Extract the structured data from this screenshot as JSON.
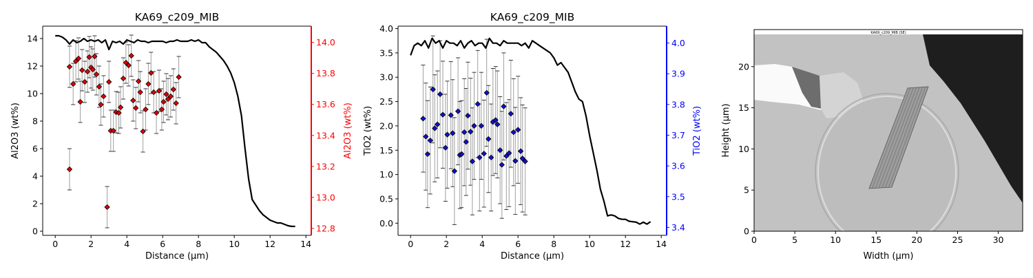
{
  "chart_data": [
    {
      "type": "line+scatter",
      "title": "KA69_c209_MIB",
      "xlabel": "Distance (µm)",
      "ylabel": "Al2O3 (wt%)",
      "ylabel_right": "Al2O3 (wt%)",
      "xlim": [
        -0.7,
        14.3
      ],
      "ylim": [
        -0.3,
        14.9
      ],
      "ylim_right": [
        12.755,
        14.105
      ],
      "xticks": [
        0,
        2,
        4,
        6,
        8,
        10,
        12,
        14
      ],
      "yticks": [
        0,
        2,
        4,
        6,
        8,
        10,
        12,
        14
      ],
      "yticks_right": [
        12.8,
        13.0,
        13.2,
        13.4,
        13.6,
        13.8,
        14.0
      ],
      "right_axis_color": "#ff0000",
      "marker_color": "#dd0000",
      "line": {
        "x": [
          0,
          0.2,
          0.4,
          0.6,
          0.8,
          1.0,
          1.2,
          1.4,
          1.6,
          1.8,
          2.0,
          2.2,
          2.4,
          2.6,
          2.8,
          3.0,
          3.2,
          3.4,
          3.6,
          3.8,
          4.0,
          4.2,
          4.4,
          4.6,
          4.8,
          5.0,
          5.2,
          5.4,
          5.6,
          5.8,
          6.0,
          6.2,
          6.4,
          6.6,
          6.8,
          7.0,
          7.2,
          7.4,
          7.6,
          7.8,
          8.0,
          8.2,
          8.4,
          8.6,
          8.8,
          9.0,
          9.2,
          9.4,
          9.6,
          9.8,
          10.0,
          10.2,
          10.4,
          10.6,
          10.8,
          11.0,
          11.2,
          11.4,
          11.6,
          11.8,
          12.0,
          12.2,
          12.4,
          12.6,
          12.8,
          13.0,
          13.2,
          13.4
        ],
        "y": [
          14.2,
          14.2,
          14.1,
          13.9,
          13.6,
          13.9,
          13.7,
          13.8,
          14.0,
          13.8,
          13.9,
          13.8,
          13.9,
          13.7,
          13.9,
          13.2,
          13.8,
          13.7,
          13.8,
          13.6,
          13.9,
          13.8,
          13.7,
          13.9,
          13.8,
          13.8,
          13.7,
          13.8,
          13.8,
          13.8,
          13.8,
          13.7,
          13.8,
          13.8,
          13.9,
          13.8,
          13.8,
          13.8,
          13.9,
          13.8,
          13.9,
          13.7,
          13.7,
          13.4,
          13.2,
          13.0,
          12.7,
          12.4,
          12.0,
          11.5,
          10.8,
          9.8,
          8.4,
          6.0,
          3.8,
          2.3,
          1.9,
          1.5,
          1.2,
          1.0,
          0.8,
          0.7,
          0.6,
          0.6,
          0.5,
          0.4,
          0.35,
          0.35
        ]
      },
      "points": [
        {
          "x": 0.8,
          "y": 11.95,
          "err": 1.5
        },
        {
          "x": 0.8,
          "y": 4.5,
          "err": 1.5
        },
        {
          "x": 1.0,
          "y": 10.7,
          "err": 1.5
        },
        {
          "x": 1.15,
          "y": 12.35,
          "err": 1.5
        },
        {
          "x": 1.3,
          "y": 12.55,
          "err": 1.5
        },
        {
          "x": 1.4,
          "y": 9.4,
          "err": 1.5
        },
        {
          "x": 1.5,
          "y": 11.7,
          "err": 1.5
        },
        {
          "x": 1.65,
          "y": 10.85,
          "err": 1.5
        },
        {
          "x": 1.8,
          "y": 11.6,
          "err": 1.5
        },
        {
          "x": 1.9,
          "y": 12.65,
          "err": 1.5
        },
        {
          "x": 2.0,
          "y": 11.9,
          "err": 1.5
        },
        {
          "x": 2.1,
          "y": 11.75,
          "err": 1.5
        },
        {
          "x": 2.2,
          "y": 12.7,
          "err": 1.5
        },
        {
          "x": 2.3,
          "y": 11.4,
          "err": 1.5
        },
        {
          "x": 2.45,
          "y": 10.5,
          "err": 1.5
        },
        {
          "x": 2.55,
          "y": 9.2,
          "err": 1.5
        },
        {
          "x": 2.7,
          "y": 9.8,
          "err": 1.5
        },
        {
          "x": 2.9,
          "y": 1.75,
          "err": 1.5
        },
        {
          "x": 3.0,
          "y": 10.85,
          "err": 1.5
        },
        {
          "x": 3.1,
          "y": 7.3,
          "err": 1.5
        },
        {
          "x": 3.25,
          "y": 7.3,
          "err": 1.5
        },
        {
          "x": 3.4,
          "y": 8.65,
          "err": 1.5
        },
        {
          "x": 3.55,
          "y": 8.6,
          "err": 1.5
        },
        {
          "x": 3.65,
          "y": 9.0,
          "err": 1.5
        },
        {
          "x": 3.8,
          "y": 11.1,
          "err": 1.5
        },
        {
          "x": 3.95,
          "y": 12.25,
          "err": 1.5
        },
        {
          "x": 4.1,
          "y": 12.05,
          "err": 1.5
        },
        {
          "x": 4.25,
          "y": 12.75,
          "err": 1.5
        },
        {
          "x": 4.35,
          "y": 9.5,
          "err": 1.5
        },
        {
          "x": 4.5,
          "y": 8.95,
          "err": 1.5
        },
        {
          "x": 4.65,
          "y": 10.9,
          "err": 1.5
        },
        {
          "x": 4.75,
          "y": 10.1,
          "err": 1.5
        },
        {
          "x": 4.9,
          "y": 7.25,
          "err": 1.5
        },
        {
          "x": 5.05,
          "y": 8.85,
          "err": 1.5
        },
        {
          "x": 5.2,
          "y": 10.7,
          "err": 1.5
        },
        {
          "x": 5.35,
          "y": 11.5,
          "err": 1.5
        },
        {
          "x": 5.5,
          "y": 10.1,
          "err": 1.5
        },
        {
          "x": 5.65,
          "y": 8.6,
          "err": 1.5
        },
        {
          "x": 5.8,
          "y": 10.2,
          "err": 1.5
        },
        {
          "x": 5.95,
          "y": 8.85,
          "err": 1.5
        },
        {
          "x": 6.05,
          "y": 9.4,
          "err": 1.5
        },
        {
          "x": 6.2,
          "y": 9.95,
          "err": 1.5
        },
        {
          "x": 6.3,
          "y": 9.6,
          "err": 1.5
        },
        {
          "x": 6.45,
          "y": 9.8,
          "err": 1.5
        },
        {
          "x": 6.6,
          "y": 10.3,
          "err": 1.5
        },
        {
          "x": 6.75,
          "y": 9.3,
          "err": 1.5
        },
        {
          "x": 6.9,
          "y": 11.2,
          "err": 1.5
        }
      ]
    },
    {
      "type": "line+scatter",
      "title": "KA69_c209_MIB",
      "xlabel": "Distance (µm)",
      "ylabel": "TiO2 (wt%)",
      "ylabel_right": "TiO2 (wt%)",
      "xlim": [
        -0.7,
        14.3
      ],
      "ylim": [
        -0.25,
        4.05
      ],
      "ylim_right": [
        3.374,
        4.055
      ],
      "xticks": [
        0,
        2,
        4,
        6,
        8,
        10,
        12,
        14
      ],
      "yticks": [
        0.0,
        0.5,
        1.0,
        1.5,
        2.0,
        2.5,
        3.0,
        3.5,
        4.0
      ],
      "yticks_right": [
        3.4,
        3.5,
        3.6,
        3.7,
        3.8,
        3.9,
        4.0
      ],
      "right_axis_color": "#0000ff",
      "marker_color": "#1111cc",
      "line": {
        "x": [
          0,
          0.2,
          0.4,
          0.6,
          0.8,
          1.0,
          1.2,
          1.4,
          1.6,
          1.8,
          2.0,
          2.2,
          2.4,
          2.6,
          2.8,
          3.0,
          3.2,
          3.4,
          3.6,
          3.8,
          4.0,
          4.2,
          4.4,
          4.6,
          4.8,
          5.0,
          5.2,
          5.4,
          5.6,
          5.8,
          6.0,
          6.2,
          6.4,
          6.6,
          6.8,
          7.0,
          7.2,
          7.4,
          7.6,
          7.8,
          8.0,
          8.2,
          8.4,
          8.6,
          8.8,
          9.0,
          9.2,
          9.4,
          9.6,
          9.8,
          10.0,
          10.2,
          10.4,
          10.6,
          10.8,
          11.0,
          11.2,
          11.4,
          11.6,
          11.8,
          12.0,
          12.2,
          12.4,
          12.6,
          12.8,
          13.0,
          13.2,
          13.4
        ],
        "y": [
          3.45,
          3.65,
          3.7,
          3.65,
          3.75,
          3.6,
          3.8,
          3.7,
          3.75,
          3.6,
          3.75,
          3.7,
          3.7,
          3.65,
          3.75,
          3.6,
          3.7,
          3.75,
          3.65,
          3.7,
          3.7,
          3.6,
          3.8,
          3.7,
          3.7,
          3.65,
          3.75,
          3.7,
          3.7,
          3.7,
          3.7,
          3.65,
          3.7,
          3.6,
          3.75,
          3.7,
          3.65,
          3.6,
          3.55,
          3.5,
          3.4,
          3.25,
          3.3,
          3.2,
          3.1,
          2.9,
          2.7,
          2.55,
          2.5,
          2.2,
          1.8,
          1.45,
          1.1,
          0.7,
          0.45,
          0.15,
          0.17,
          0.15,
          0.1,
          0.08,
          0.08,
          0.04,
          0.03,
          0.02,
          -0.02,
          0.02,
          -0.02,
          0.03
        ]
      },
      "points": [
        {
          "x": 0.7,
          "y": 2.15,
          "err": 1.1
        },
        {
          "x": 0.85,
          "y": 1.78,
          "err": 1.1
        },
        {
          "x": 0.95,
          "y": 1.42,
          "err": 1.1
        },
        {
          "x": 1.1,
          "y": 1.7,
          "err": 1.1
        },
        {
          "x": 1.25,
          "y": 2.75,
          "err": 1.1
        },
        {
          "x": 1.35,
          "y": 1.95,
          "err": 1.1
        },
        {
          "x": 1.5,
          "y": 2.03,
          "err": 1.1
        },
        {
          "x": 1.65,
          "y": 2.65,
          "err": 1.1
        },
        {
          "x": 1.8,
          "y": 2.23,
          "err": 1.1
        },
        {
          "x": 1.95,
          "y": 1.55,
          "err": 1.1
        },
        {
          "x": 2.05,
          "y": 1.82,
          "err": 1.1
        },
        {
          "x": 2.25,
          "y": 2.22,
          "err": 1.1
        },
        {
          "x": 2.35,
          "y": 1.85,
          "err": 1.1
        },
        {
          "x": 2.45,
          "y": 1.07,
          "err": 1.1
        },
        {
          "x": 2.65,
          "y": 2.3,
          "err": 1.1
        },
        {
          "x": 2.75,
          "y": 1.4,
          "err": 1.1
        },
        {
          "x": 2.85,
          "y": 1.42,
          "err": 1.1
        },
        {
          "x": 3.0,
          "y": 1.87,
          "err": 1.1
        },
        {
          "x": 3.1,
          "y": 1.67,
          "err": 1.1
        },
        {
          "x": 3.2,
          "y": 2.21,
          "err": 1.1
        },
        {
          "x": 3.35,
          "y": 1.88,
          "err": 1.1
        },
        {
          "x": 3.45,
          "y": 1.27,
          "err": 1.1
        },
        {
          "x": 3.55,
          "y": 2.0,
          "err": 1.1
        },
        {
          "x": 3.75,
          "y": 2.45,
          "err": 1.1
        },
        {
          "x": 3.85,
          "y": 1.35,
          "err": 1.1
        },
        {
          "x": 3.95,
          "y": 2.0,
          "err": 1.1
        },
        {
          "x": 4.1,
          "y": 1.43,
          "err": 1.1
        },
        {
          "x": 4.25,
          "y": 2.68,
          "err": 1.1
        },
        {
          "x": 4.35,
          "y": 1.73,
          "err": 1.1
        },
        {
          "x": 4.5,
          "y": 1.35,
          "err": 1.1
        },
        {
          "x": 4.6,
          "y": 2.08,
          "err": 1.1
        },
        {
          "x": 4.75,
          "y": 2.12,
          "err": 1.1
        },
        {
          "x": 4.85,
          "y": 2.03,
          "err": 1.1
        },
        {
          "x": 5.0,
          "y": 1.5,
          "err": 1.1
        },
        {
          "x": 5.1,
          "y": 1.2,
          "err": 1.1
        },
        {
          "x": 5.2,
          "y": 2.4,
          "err": 1.1
        },
        {
          "x": 5.35,
          "y": 1.38,
          "err": 1.1
        },
        {
          "x": 5.5,
          "y": 1.44,
          "err": 1.1
        },
        {
          "x": 5.6,
          "y": 2.25,
          "err": 1.1
        },
        {
          "x": 5.75,
          "y": 1.87,
          "err": 1.1
        },
        {
          "x": 5.85,
          "y": 1.28,
          "err": 1.1
        },
        {
          "x": 6.0,
          "y": 1.92,
          "err": 1.1
        },
        {
          "x": 6.15,
          "y": 1.48,
          "err": 1.1
        },
        {
          "x": 6.25,
          "y": 1.33,
          "err": 1.1
        },
        {
          "x": 6.4,
          "y": 1.27,
          "err": 1.1
        }
      ]
    },
    {
      "type": "image",
      "xlabel": "Width (µm)",
      "ylabel": "Height (µm)",
      "xlim": [
        0,
        33
      ],
      "ylim": [
        0,
        24.5
      ],
      "xticks": [
        0,
        5,
        10,
        15,
        20,
        25,
        30
      ],
      "yticks": [
        0,
        5,
        10,
        15,
        20
      ],
      "image_caption": "KA69_c209_MIB (SE)",
      "background_color": "#c2c2c2",
      "dark_region_color": "#1e1e1e"
    }
  ]
}
